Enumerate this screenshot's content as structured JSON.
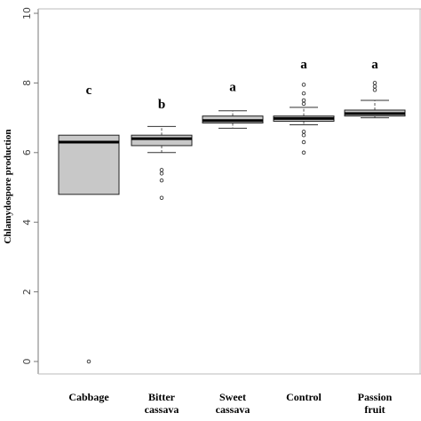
{
  "chart_data": {
    "type": "boxplot",
    "title": "",
    "xlabel": "",
    "ylabel": "Chlamydospore production",
    "ylim": [
      0,
      10
    ],
    "yticks": [
      "0",
      "2",
      "4",
      "6",
      "8",
      "10"
    ],
    "grid": false,
    "legend": "none",
    "box_fill": "#c8c8c8",
    "categories": [
      {
        "label": [
          "Cabbage"
        ],
        "letter": "c",
        "letter_y": 7.8,
        "min": 4.8,
        "q1": 4.8,
        "median": 6.3,
        "q3": 6.5,
        "max": 6.5,
        "outliers": [
          0.0
        ]
      },
      {
        "label": [
          "Bitter",
          "cassava"
        ],
        "letter": "b",
        "letter_y": 7.4,
        "min": 6.0,
        "q1": 6.2,
        "median": 6.4,
        "q3": 6.5,
        "max": 6.75,
        "outliers": [
          5.2,
          5.4,
          5.5,
          4.7
        ]
      },
      {
        "label": [
          "Sweet",
          "cassava"
        ],
        "letter": "a",
        "letter_y": 7.9,
        "min": 6.7,
        "q1": 6.85,
        "median": 6.92,
        "q3": 7.05,
        "max": 7.2,
        "outliers": []
      },
      {
        "label": [
          "Control"
        ],
        "letter": "a",
        "letter_y": 8.55,
        "min": 6.8,
        "q1": 6.9,
        "median": 6.98,
        "q3": 7.05,
        "max": 7.3,
        "outliers": [
          7.4,
          7.5,
          7.7,
          7.95,
          6.6,
          6.5,
          6.3,
          6.0
        ]
      },
      {
        "label": [
          "Passion",
          "fruit"
        ],
        "letter": "a",
        "letter_y": 8.55,
        "min": 7.0,
        "q1": 7.05,
        "median": 7.12,
        "q3": 7.22,
        "max": 7.5,
        "outliers": [
          7.8,
          7.9,
          8.0
        ]
      }
    ]
  }
}
